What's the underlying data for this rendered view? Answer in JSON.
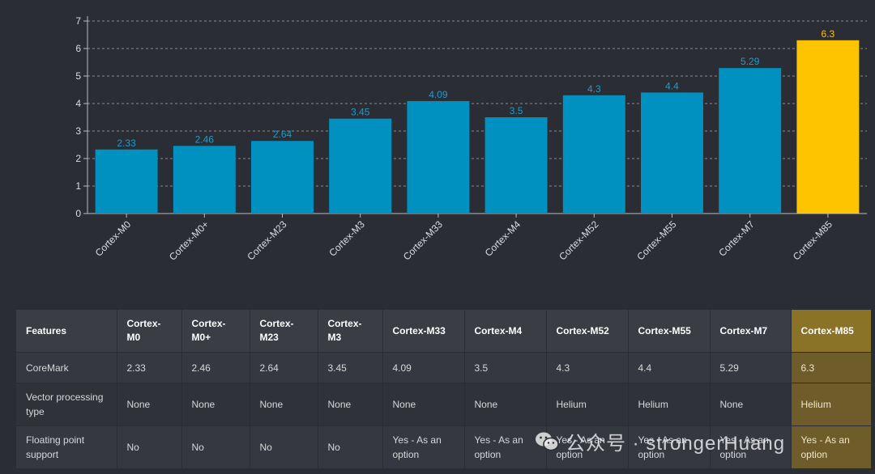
{
  "chart_data": {
    "type": "bar",
    "categories": [
      "Cortex-M0",
      "Cortex-M0+",
      "Cortex-M23",
      "Cortex-M3",
      "Cortex-M33",
      "Cortex-M4",
      "Cortex-M52",
      "Cortex-M55",
      "Cortex-M7",
      "Cortex-M85"
    ],
    "values": [
      2.33,
      2.46,
      2.64,
      3.45,
      4.09,
      3.5,
      4.3,
      4.4,
      5.29,
      6.3
    ],
    "value_labels": [
      "2.33",
      "2.46",
      "2.64",
      "3.45",
      "4.09",
      "3.5",
      "4.3",
      "4.4",
      "5.29",
      "6.3"
    ],
    "y_ticks": [
      0,
      1,
      2,
      3,
      4,
      5,
      6,
      7
    ],
    "ylim": [
      0,
      7
    ],
    "grid": "horizontal-dashed",
    "highlight_category": "Cortex-M85",
    "colors": {
      "bar": "#0091c0",
      "highlight": "#ffc400",
      "label": "#1a9ed0",
      "highlight_label": "#ffc400",
      "axis": "#bbbbbb",
      "grid": "#8a8d92"
    }
  },
  "table": {
    "headers": [
      "Features",
      "Cortex-M0",
      "Cortex-M0+",
      "Cortex-M23",
      "Cortex-M3",
      "Cortex-M33",
      "Cortex-M4",
      "Cortex-M52",
      "Cortex-M55",
      "Cortex-M7",
      "Cortex-M85"
    ],
    "rows": [
      [
        "CoreMark",
        "2.33",
        "2.46",
        "2.64",
        "3.45",
        "4.09",
        "3.5",
        "4.3",
        "4.4",
        "5.29",
        "6.3"
      ],
      [
        "Vector processing type",
        "None",
        "None",
        "None",
        "None",
        "None",
        "None",
        "Helium",
        "Helium",
        "None",
        "Helium"
      ],
      [
        "Floating point support",
        "No",
        "No",
        "No",
        "No",
        "Yes - As an option",
        "Yes - As an option",
        "Yes - As an option",
        "Yes - As an option",
        "Yes - As an option",
        "Yes - As an option"
      ]
    ],
    "highlight_column": 10
  },
  "watermark": {
    "text": "公众号 · strongerHuang"
  }
}
